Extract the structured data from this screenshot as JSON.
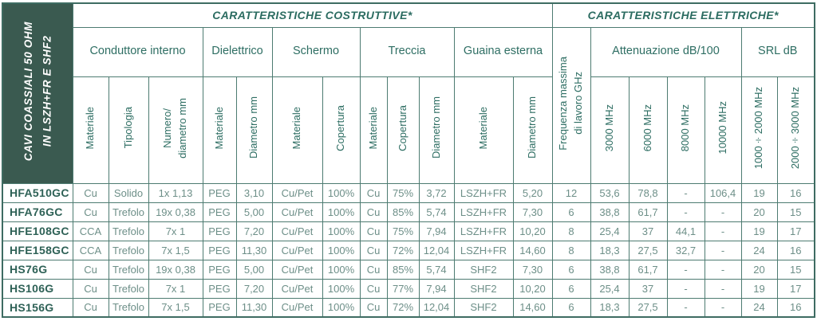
{
  "panel": {
    "line1": "CAVI COASSIALI 50 OHM",
    "line2": "IN LSZH+FR E SHF2"
  },
  "section_headers": {
    "costruttive": "CARATTERISTICHE COSTRUTTIVE*",
    "elettriche": "CARATTERISTICHE ELETTRICHE*"
  },
  "group_headers": {
    "conduttore": "Conduttore interno",
    "dielettrico": "Dielettrico",
    "schermo": "Schermo",
    "treccia": "Treccia",
    "guaina": "Guaina esterna",
    "frequenza_line1": "Frequenza massima",
    "frequenza_line2": "di lavoro  GHz",
    "attenuazione": "Attenuazione dB/100",
    "srl": "SRL dB"
  },
  "column_headers": {
    "cond_materiale": "Materiale",
    "cond_tipologia": "Tipologia",
    "cond_numero_line1": "Numero/",
    "cond_numero_line2": "diametro mm",
    "diel_materiale": "Materiale",
    "diel_diametro": "Diametro mm",
    "schermo_materiale": "Materiale",
    "schermo_copertura": "Copertura",
    "treccia_materiale": "Materiale",
    "treccia_copertura": "Copertura",
    "treccia_diametro": "Diametro mm",
    "guaina_materiale": "Materiale",
    "guaina_diametro": "Diametro mm",
    "att_3000": "3000 MHz",
    "att_6000": "6000 MHz",
    "att_8000": "8000 MHz",
    "att_10000": "10000 MHz",
    "srl_1000_2000": "1000÷2000 MHz",
    "srl_2000_3000": "2000÷3000 MHz"
  },
  "colors": {
    "panel_bg": "#3a5a50",
    "header_text": "#2e6e63",
    "data_text": "#6d8f88",
    "border": "#4d7b71"
  },
  "rows": [
    {
      "name": "HFA510GC",
      "values": [
        "Cu",
        "Solido",
        "1x 1,13",
        "PEG",
        "3,10",
        "Cu/Pet",
        "100%",
        "Cu",
        "75%",
        "3,72",
        "LSZH+FR",
        "5,20",
        "12",
        "53,6",
        "78,8",
        "-",
        "106,4",
        "19",
        "16"
      ]
    },
    {
      "name": "HFA76GC",
      "values": [
        "Cu",
        "Trefolo",
        "19x 0,38",
        "PEG",
        "5,00",
        "Cu/Pet",
        "100%",
        "Cu",
        "85%",
        "5,74",
        "LSZH+FR",
        "7,30",
        "6",
        "38,8",
        "61,7",
        "-",
        "-",
        "20",
        "15"
      ]
    },
    {
      "name": "HFE108GC",
      "values": [
        "CCA",
        "Trefolo",
        "7x 1",
        "PEG",
        "7,20",
        "Cu/Pet",
        "100%",
        "Cu",
        "75%",
        "7,94",
        "LSZH+FR",
        "10,20",
        "8",
        "25,4",
        "37",
        "44,1",
        "-",
        "19",
        "17"
      ]
    },
    {
      "name": "HFE158GC",
      "values": [
        "CCA",
        "Trefolo",
        "7x 1,5",
        "PEG",
        "11,30",
        "Cu/Pet",
        "100%",
        "Cu",
        "72%",
        "12,04",
        "LSZH+FR",
        "14,60",
        "8",
        "18,3",
        "27,5",
        "32,7",
        "-",
        "24",
        "16"
      ]
    },
    {
      "name": "HS76G",
      "values": [
        "Cu",
        "Trefolo",
        "19x 0,38",
        "PEG",
        "5,00",
        "Cu/Pet",
        "100%",
        "Cu",
        "85%",
        "5,74",
        "SHF2",
        "7,30",
        "6",
        "38,8",
        "61,7",
        "-",
        "-",
        "20",
        "15"
      ]
    },
    {
      "name": "HS106G",
      "values": [
        "Cu",
        "Trefolo",
        "7x 1",
        "PEG",
        "7,20",
        "Cu/Pet",
        "100%",
        "Cu",
        "77%",
        "7,94",
        "SHF2",
        "10,20",
        "6",
        "25,4",
        "37",
        "-",
        "-",
        "19",
        "17"
      ]
    },
    {
      "name": "HS156G",
      "values": [
        "Cu",
        "Trefolo",
        "7x 1,5",
        "PEG",
        "11,30",
        "Cu/Pet",
        "100%",
        "Cu",
        "72%",
        "12,04",
        "SHF2",
        "14,60",
        "6",
        "18,3",
        "27,5",
        "-",
        "-",
        "24",
        "16"
      ]
    }
  ]
}
